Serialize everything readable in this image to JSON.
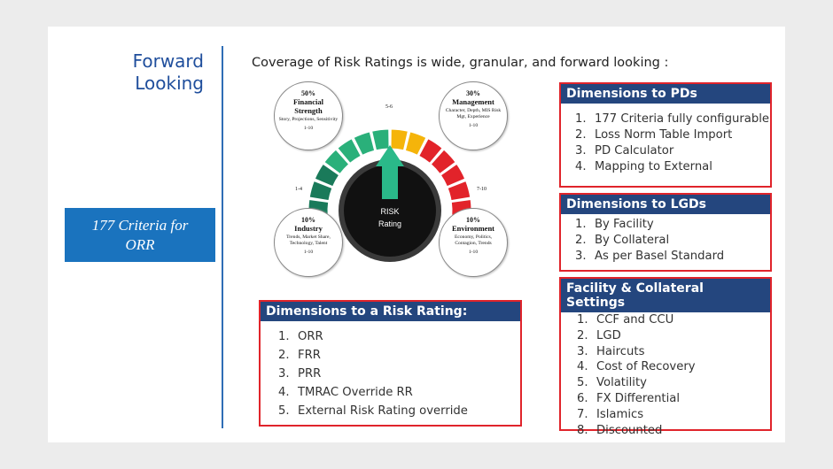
{
  "title": {
    "line1": "Forward",
    "line2": "Looking"
  },
  "criteria_box": {
    "line1": "177 Criteria for",
    "line2": "ORR"
  },
  "subtitle": "Coverage of Risk Ratings is wide, granular, and forward looking :",
  "gauge": {
    "center_line1": "RISK",
    "center_line2": "Rating",
    "label_low": "1-4",
    "label_mid": "5-6",
    "label_high": "7-10",
    "colors": {
      "green": "#1a7a5a",
      "light_green": "#2ab07a",
      "yellow": "#f5b40a",
      "red": "#e2232a",
      "needle": "#2ab989"
    },
    "circles": [
      {
        "pct": "50%",
        "name_l1": "Financial",
        "name_l2": "Strength",
        "desc": "Story, Projections, Sensitivity",
        "range": "1-10"
      },
      {
        "pct": "30%",
        "name_l1": "Management",
        "name_l2": "",
        "desc": "Character, Depth, MIS Risk Mgt, Experience",
        "range": "1-10"
      },
      {
        "pct": "10%",
        "name_l1": "Industry",
        "name_l2": "",
        "desc": "Trends, Market Share, Technology, Talent",
        "range": "1-10"
      },
      {
        "pct": "10%",
        "name_l1": "Environment",
        "name_l2": "",
        "desc": "Economy, Politics, Contagion, Trends",
        "range": "1-10"
      }
    ]
  },
  "risk_rating_box": {
    "header": "Dimensions to a Risk Rating:",
    "items": [
      "ORR",
      "FRR",
      "PRR",
      "TMRAC Override RR",
      "External Risk Rating override"
    ]
  },
  "pd_box": {
    "header": "Dimensions to PDs",
    "items": [
      "177 Criteria fully configurable",
      "Loss Norm Table Import",
      "PD Calculator",
      "Mapping to External"
    ]
  },
  "lgd_box": {
    "header": "Dimensions to LGDs",
    "items": [
      "By Facility",
      "By Collateral",
      "As per Basel Standard"
    ]
  },
  "facility_box": {
    "header": "Facility & Collateral Settings",
    "items": [
      "CCF and CCU",
      "LGD",
      "Haircuts",
      "Cost of Recovery",
      "Volatility",
      "FX Differential",
      "Islamics",
      "Discounted"
    ]
  }
}
